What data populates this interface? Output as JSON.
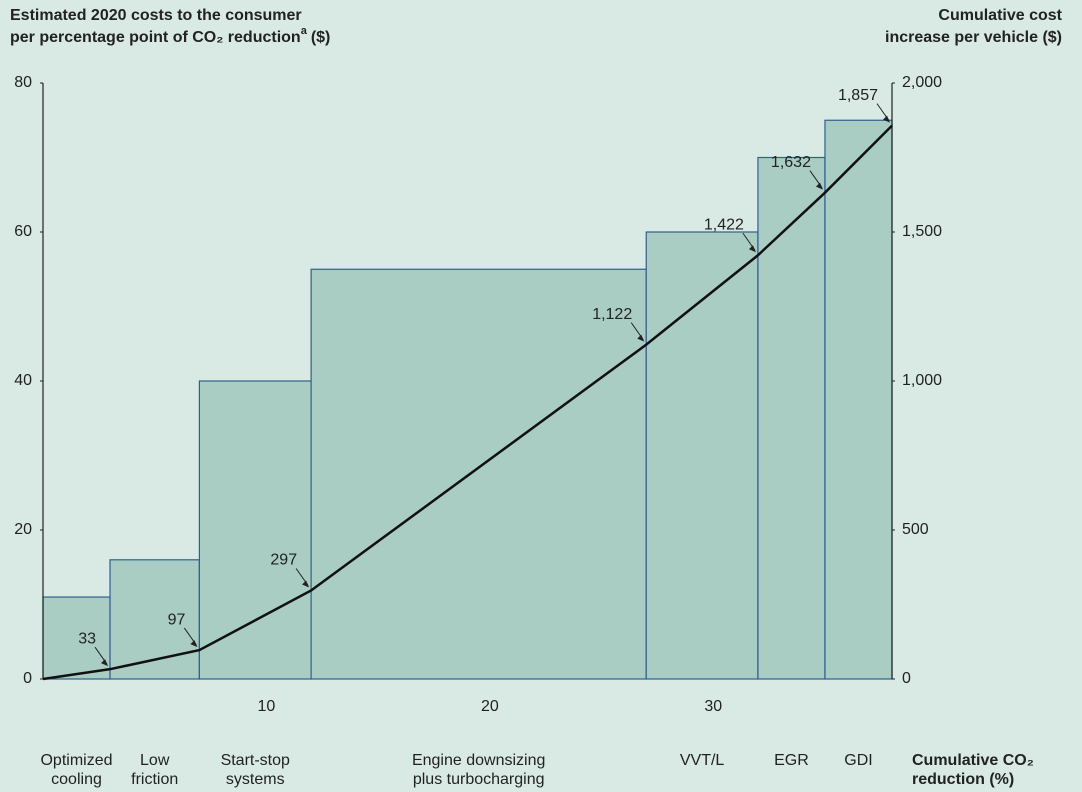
{
  "chart_data": {
    "type": "variable-width-bar",
    "ylabel": [
      "Estimated 2020 costs to the consumer",
      "per percentage point of CO₂ reduction"
    ],
    "ylabel_note": "a",
    "ylabel_unit": "($)",
    "y2label": [
      "Cumulative cost",
      "increase per vehicle ($)"
    ],
    "xlabel": [
      "Cumulative CO₂",
      "reduction (%)"
    ],
    "categories": [
      [
        "Optimized",
        "cooling"
      ],
      [
        "Low",
        "friction"
      ],
      [
        "Start-stop",
        "systems"
      ],
      [
        "Engine downsizing",
        "plus turbocharging"
      ],
      [
        "VVT/L"
      ],
      [
        "EGR"
      ],
      [
        "GDI"
      ]
    ],
    "bins": [
      0,
      3,
      7,
      12,
      27,
      32,
      35,
      38
    ],
    "values": [
      11,
      16,
      40,
      55,
      60,
      70,
      75
    ],
    "color": "#a9cdc3",
    "edgecolor": "#2f5f8f",
    "line": {
      "axis": "y2",
      "color": "#111111",
      "x": [
        0,
        3,
        7,
        12,
        27,
        32,
        35,
        38
      ],
      "values": [
        0,
        33,
        97,
        297,
        1122,
        1422,
        1632,
        1857
      ],
      "value_labels": [
        null,
        "33",
        "97",
        "297",
        "1,122",
        "1,422",
        "1,632",
        "1,857"
      ]
    },
    "xlim": [
      0,
      38
    ],
    "xticks": [
      10,
      20,
      30
    ],
    "ylim": [
      0,
      80
    ],
    "yticks": [
      0,
      20,
      40,
      60,
      80
    ],
    "y2lim": [
      0,
      2000
    ],
    "y2ticks": [
      0,
      500,
      {
        "value": 1000,
        "label": "1,000"
      },
      {
        "value": 1500,
        "label": "1,500"
      },
      {
        "value": 2000,
        "label": "2,000"
      }
    ]
  }
}
